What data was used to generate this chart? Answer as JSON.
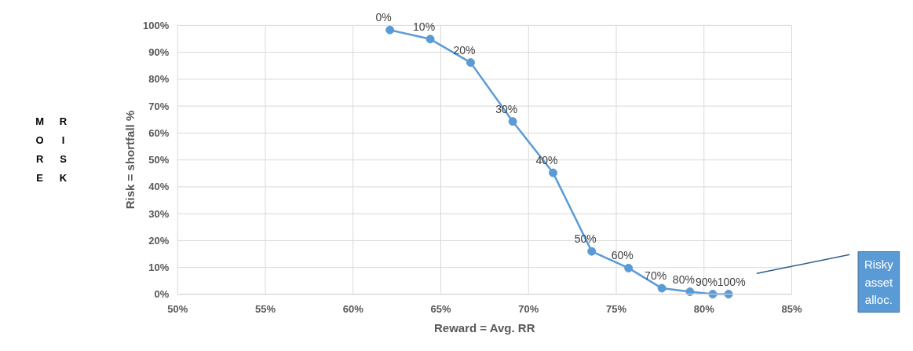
{
  "chart_data": {
    "type": "line",
    "xlabel": "Reward = Avg. RR",
    "ylabel": "Risk = shortfall %",
    "x": [
      62.1,
      64.4,
      66.7,
      69.1,
      71.4,
      73.6,
      75.7,
      77.6,
      79.2,
      80.5,
      81.4
    ],
    "series": [
      {
        "color": "#5b9bd5",
        "values": [
          98.3,
          94.9,
          86.2,
          64.3,
          45.2,
          16.0,
          9.8,
          2.3,
          1.0,
          0.1,
          0.1
        ]
      }
    ],
    "xlim": [
      50,
      85
    ],
    "ylim": [
      0,
      100
    ],
    "xticks": [
      {
        "value": 50,
        "label": "50%"
      },
      {
        "value": 55,
        "label": "55%"
      },
      {
        "value": 60,
        "label": "60%"
      },
      {
        "value": 65,
        "label": "65%"
      },
      {
        "value": 70,
        "label": "70%"
      },
      {
        "value": 75,
        "label": "75%"
      },
      {
        "value": 80,
        "label": "80%"
      },
      {
        "value": 85,
        "label": "85%"
      }
    ],
    "yticks": [
      {
        "value": 0,
        "label": "0%"
      },
      {
        "value": 10,
        "label": "10%"
      },
      {
        "value": 20,
        "label": "20%"
      },
      {
        "value": 30,
        "label": "30%"
      },
      {
        "value": 40,
        "label": "40%"
      },
      {
        "value": 50,
        "label": "50%"
      },
      {
        "value": 60,
        "label": "60%"
      },
      {
        "value": 70,
        "label": "70%"
      },
      {
        "value": 80,
        "label": "80%"
      },
      {
        "value": 90,
        "label": "90%"
      },
      {
        "value": 100,
        "label": "100%"
      }
    ],
    "grid": true,
    "marker": "circle",
    "line_style": "solid",
    "annotations": [
      {
        "text": "0%",
        "x": 62.1,
        "y": 98.3
      },
      {
        "text": "10%",
        "x": 64.4,
        "y": 94.9
      },
      {
        "text": "20%",
        "x": 66.7,
        "y": 86.2
      },
      {
        "text": "30%",
        "x": 69.1,
        "y": 64.3
      },
      {
        "text": "40%",
        "x": 71.4,
        "y": 45.2
      },
      {
        "text": "50%",
        "x": 73.6,
        "y": 16.0
      },
      {
        "text": "60%",
        "x": 75.7,
        "y": 9.8
      },
      {
        "text": "70%",
        "x": 77.6,
        "y": 2.3
      },
      {
        "text": "80%",
        "x": 79.2,
        "y": 1.0
      },
      {
        "text": "90%",
        "x": 80.5,
        "y": 0.1
      },
      {
        "text": "100%",
        "x": 81.4,
        "y": 0.1
      },
      "Risky asset alloc.",
      "MORE",
      "RISK"
    ]
  }
}
